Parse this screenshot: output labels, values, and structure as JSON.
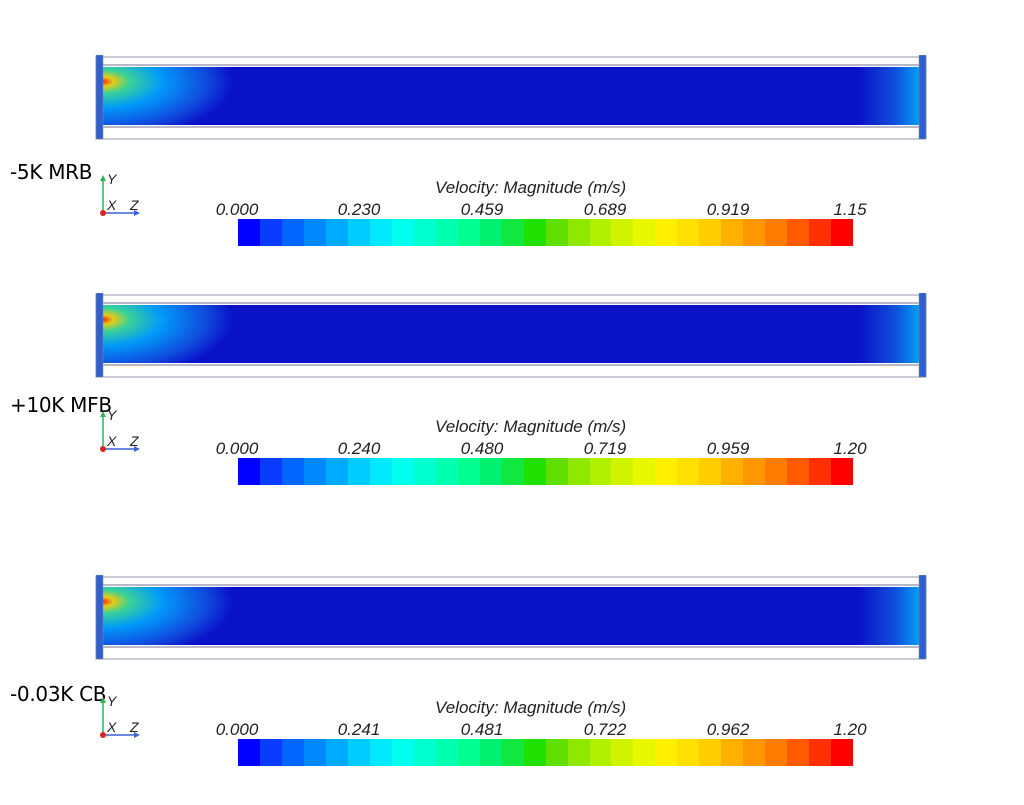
{
  "colorbar_title": "Velocity: Magnitude (m/s)",
  "axis_labels": {
    "y": "Y",
    "x": "X",
    "z": "Z"
  },
  "colors": {
    "field_background": "#0a12c8",
    "pipe_wall": "#b8b8c8",
    "axis_y": "#2fb54a",
    "axis_z": "#3a64d6",
    "axis_origin": "#e02020"
  },
  "colormap": [
    "#0000ff",
    "#0a3cff",
    "#0066ff",
    "#0088ff",
    "#00aaff",
    "#00ccff",
    "#00eaff",
    "#00ffee",
    "#00ffd0",
    "#00ffb0",
    "#00ff90",
    "#00f070",
    "#10e840",
    "#20e000",
    "#60e000",
    "#90e800",
    "#b0f000",
    "#d0f400",
    "#e8f800",
    "#fff000",
    "#ffe000",
    "#ffcc00",
    "#ffb000",
    "#ff9800",
    "#ff7c00",
    "#ff5a00",
    "#ff3000",
    "#ff0000"
  ],
  "panels": [
    {
      "case_label": "-5K MRB",
      "ticks": [
        "0.000",
        "0.230",
        "0.459",
        "0.689",
        "0.919",
        "1.15"
      ]
    },
    {
      "case_label": "+10K MFB",
      "ticks": [
        "0.000",
        "0.240",
        "0.480",
        "0.719",
        "0.959",
        "1.20"
      ]
    },
    {
      "case_label": "-0.03K CB",
      "ticks": [
        "0.000",
        "0.241",
        "0.481",
        "0.722",
        "0.962",
        "1.20"
      ]
    }
  ]
}
